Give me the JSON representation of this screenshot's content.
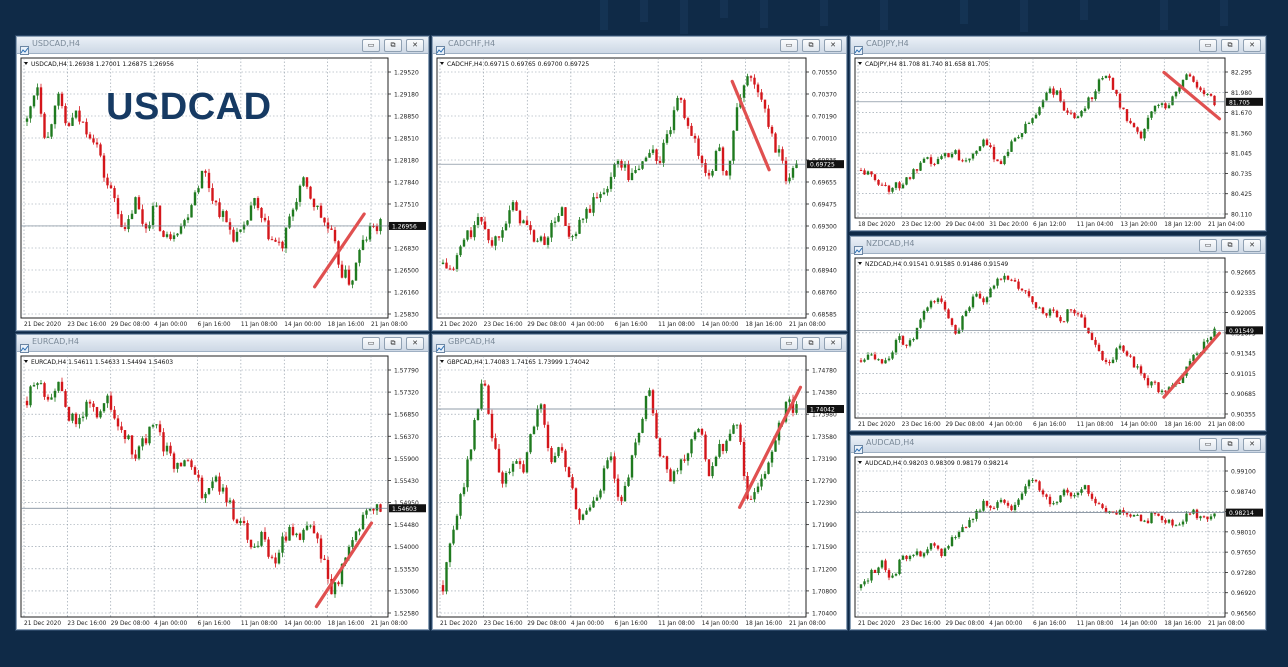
{
  "colors": {
    "up": "#1f7a1f",
    "down": "#d4161b",
    "arrow": "#e05050",
    "grid": "#8b97a3",
    "background": "#0f2a47"
  },
  "overlay_label": "USDCAD",
  "window_buttons": {
    "minimize": "▭",
    "restore": "⧉",
    "close": "✕"
  },
  "charts": [
    {
      "title": "USDCAD,H4",
      "info": "USDCAD,H4  1.26938 1.27001 1.26875 1.26956",
      "y_ticks": [
        "1.29520",
        "1.29180",
        "1.28850",
        "1.28510",
        "1.28180",
        "1.27840",
        "1.27510",
        "1.27170",
        "1.26830",
        "1.26500",
        "1.26160",
        "1.25830"
      ],
      "x_ticks": [
        "21 Dec 2020",
        "23 Dec 16:00",
        "29 Dec 08:00",
        "4 Jan 00:00",
        "6 Jan 16:00",
        "11 Jan 08:00",
        "14 Jan 00:00",
        "18 Jan 16:00",
        "21 Jan 08:00"
      ],
      "price": "1.26956",
      "ymin": 1.2565,
      "ymax": 1.297,
      "path": [
        1.287,
        1.294,
        1.283,
        1.292,
        1.286,
        1.288,
        1.286,
        1.284,
        1.277,
        1.274,
        1.268,
        1.274,
        1.269,
        1.273,
        1.267,
        1.269,
        1.27,
        1.275,
        1.279,
        1.274,
        1.271,
        1.268,
        1.268,
        1.274,
        1.27,
        1.267,
        1.266,
        1.272,
        1.277,
        1.274,
        1.271,
        1.268,
        1.262,
        1.26,
        1.266,
        1.269,
        1.2696
      ],
      "arrow": [
        0.8,
        0.88,
        0.935,
        0.6
      ]
    },
    {
      "title": "CADCHF,H4",
      "info": "CADCHF,H4  0.69715 0.69765 0.69700 0.69725",
      "y_ticks": [
        "0.70550",
        "0.70370",
        "0.70190",
        "0.70010",
        "0.69835",
        "0.69655",
        "0.69475",
        "0.69300",
        "0.69120",
        "0.68940",
        "0.68760",
        "0.68585"
      ],
      "x_ticks": [
        "21 Dec 2020",
        "23 Dec 16:00",
        "29 Dec 08:00",
        "4 Jan 00:00",
        "6 Jan 16:00",
        "11 Jan 08:00",
        "14 Jan 00:00",
        "18 Jan 16:00",
        "21 Jan 08:00"
      ],
      "price": "0.69725",
      "ymin": 0.685,
      "ymax": 0.7062,
      "path": [
        0.6885,
        0.6878,
        0.6905,
        0.6915,
        0.6925,
        0.69,
        0.692,
        0.6935,
        0.6925,
        0.691,
        0.6903,
        0.6915,
        0.6935,
        0.69,
        0.692,
        0.6935,
        0.6945,
        0.696,
        0.6978,
        0.696,
        0.697,
        0.6985,
        0.6975,
        0.7,
        0.7028,
        0.701,
        0.698,
        0.6962,
        0.6985,
        0.696,
        0.7025,
        0.705,
        0.704,
        0.701,
        0.6985,
        0.696,
        0.69725
      ],
      "arrow": [
        0.8,
        0.09,
        0.9,
        0.43
      ]
    },
    {
      "title": "CADJPY,H4",
      "info": "CADJPY,H4  81.708 81.740 81.658 81.705",
      "y_ticks": [
        "82.295",
        "81.980",
        "81.670",
        "81.360",
        "81.045",
        "80.735",
        "80.425",
        "80.110"
      ],
      "x_ticks": [
        "18 Dec 2020",
        "23 Dec 12:00",
        "29 Dec 04:00",
        "31 Dec 20:00",
        "6 Jan 12:00",
        "11 Jan 04:00",
        "13 Jan 20:00",
        "18 Jan 12:00",
        "21 Jan 04:00"
      ],
      "price": "81.705",
      "ymin": 80.05,
      "ymax": 82.35,
      "path": [
        80.6,
        80.5,
        80.4,
        80.3,
        80.35,
        80.45,
        80.6,
        80.75,
        80.7,
        80.85,
        80.9,
        80.75,
        80.9,
        81.05,
        80.9,
        80.7,
        81.0,
        81.15,
        81.35,
        81.55,
        81.9,
        81.85,
        81.55,
        81.4,
        81.65,
        81.85,
        82.15,
        82.0,
        81.6,
        81.3,
        81.1,
        81.45,
        81.7,
        81.65,
        81.9,
        82.15,
        82.0,
        81.8,
        81.705
      ],
      "arrow": [
        0.835,
        0.09,
        0.985,
        0.38
      ]
    },
    {
      "title": "NZDCAD,H4",
      "info": "NZDCAD,H4  0.91541 0.91585 0.91486 0.91549",
      "y_ticks": [
        "0.92665",
        "0.92335",
        "0.92005",
        "0.91675",
        "0.91345",
        "0.91015",
        "0.90685",
        "0.90355"
      ],
      "x_ticks": [
        "21 Dec 2020",
        "23 Dec 16:00",
        "29 Dec 08:00",
        "4 Jan 00:00",
        "6 Jan 16:00",
        "11 Jan 08:00",
        "14 Jan 00:00",
        "18 Jan 16:00",
        "21 Jan 08:00"
      ],
      "price": "0.91549",
      "ymin": 0.902,
      "ymax": 0.928,
      "path": [
        0.91,
        0.912,
        0.9095,
        0.911,
        0.914,
        0.9125,
        0.916,
        0.92,
        0.9215,
        0.9185,
        0.915,
        0.9195,
        0.9215,
        0.9205,
        0.924,
        0.926,
        0.924,
        0.9225,
        0.921,
        0.918,
        0.919,
        0.917,
        0.92,
        0.9175,
        0.915,
        0.911,
        0.9095,
        0.9125,
        0.911,
        0.908,
        0.906,
        0.905,
        0.904,
        0.9055,
        0.9085,
        0.911,
        0.913,
        0.9155
      ],
      "arrow": [
        0.835,
        0.87,
        0.985,
        0.47
      ]
    },
    {
      "title": "EURCAD,H4",
      "info": "EURCAD,H4  1.54611 1.54633 1.54494 1.54603",
      "y_ticks": [
        "1.57790",
        "1.57320",
        "1.56850",
        "1.56370",
        "1.55900",
        "1.55430",
        "1.54950",
        "1.54480",
        "1.54000",
        "1.53530",
        "1.53060",
        "1.52580"
      ],
      "x_ticks": [
        "21 Dec 2020",
        "23 Dec 16:00",
        "29 Dec 08:00",
        "4 Jan 00:00",
        "6 Jan 16:00",
        "11 Jan 08:00",
        "14 Jan 00:00",
        "18 Jan 16:00",
        "21 Jan 08:00"
      ],
      "price": "1.54603",
      "ymin": 1.524,
      "ymax": 1.5805,
      "path": [
        1.571,
        1.576,
        1.572,
        1.575,
        1.569,
        1.565,
        1.57,
        1.568,
        1.572,
        1.566,
        1.563,
        1.558,
        1.562,
        1.565,
        1.56,
        1.556,
        1.558,
        1.554,
        1.549,
        1.553,
        1.549,
        1.545,
        1.542,
        1.536,
        1.54,
        1.533,
        1.538,
        1.541,
        1.539,
        1.542,
        1.535,
        1.527,
        1.531,
        1.537,
        1.543,
        1.547,
        1.546
      ],
      "arrow": [
        0.805,
        0.96,
        0.955,
        0.64
      ]
    },
    {
      "title": "GBPCAD,H4",
      "info": "GBPCAD,H4  1.74083 1.74165 1.73999 1.74042",
      "y_ticks": [
        "1.74780",
        "1.74380",
        "1.73980",
        "1.73580",
        "1.73190",
        "1.72790",
        "1.72390",
        "1.71990",
        "1.71590",
        "1.71200",
        "1.70800",
        "1.70400"
      ],
      "x_ticks": [
        "21 Dec 2020",
        "23 Dec 16:00",
        "29 Dec 08:00",
        "4 Jan 00:00",
        "6 Jan 16:00",
        "11 Jan 08:00",
        "14 Jan 00:00",
        "18 Jan 16:00",
        "21 Jan 08:00"
      ],
      "price": "1.74042",
      "ymin": 1.7025,
      "ymax": 1.75,
      "path": [
        1.706,
        1.716,
        1.725,
        1.735,
        1.747,
        1.735,
        1.725,
        1.73,
        1.728,
        1.735,
        1.742,
        1.73,
        1.733,
        1.725,
        1.718,
        1.722,
        1.725,
        1.732,
        1.72,
        1.728,
        1.736,
        1.745,
        1.733,
        1.727,
        1.73,
        1.732,
        1.738,
        1.728,
        1.732,
        1.734,
        1.738,
        1.722,
        1.726,
        1.728,
        1.735,
        1.742,
        1.7404
      ],
      "arrow": [
        0.82,
        0.58,
        0.985,
        0.12
      ]
    },
    {
      "title": "AUDCAD,H4",
      "info": "AUDCAD,H4  0.98203 0.98309 0.98179 0.98214",
      "y_ticks": [
        "0.99100",
        "0.98740",
        "0.98370",
        "0.98010",
        "0.97650",
        "0.97280",
        "0.96920",
        "0.96560"
      ],
      "x_ticks": [
        "21 Dec 2020",
        "23 Dec 16:00",
        "29 Dec 08:00",
        "4 Jan 00:00",
        "6 Jan 16:00",
        "11 Jan 08:00",
        "14 Jan 00:00",
        "18 Jan 16:00",
        "21 Jan 08:00"
      ],
      "price": "0.98214",
      "ymin": 0.964,
      "ymax": 0.9925,
      "path": [
        0.967,
        0.97,
        0.972,
        0.969,
        0.9725,
        0.9745,
        0.973,
        0.9755,
        0.974,
        0.977,
        0.979,
        0.981,
        0.984,
        0.982,
        0.985,
        0.983,
        0.987,
        0.989,
        0.986,
        0.984,
        0.9865,
        0.9855,
        0.9875,
        0.9845,
        0.9835,
        0.982,
        0.983,
        0.9815,
        0.98,
        0.982,
        0.9805,
        0.9795,
        0.981,
        0.982,
        0.9805,
        0.9821
      ],
      "arrow": null
    }
  ]
}
